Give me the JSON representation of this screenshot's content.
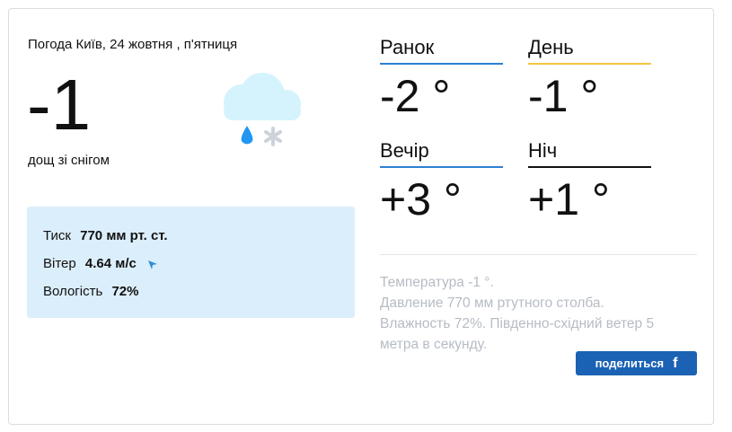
{
  "header": {
    "title": "Погода Київ, 24 жовтня , п'ятниця"
  },
  "current": {
    "temperature": "-1",
    "condition": "дощ зі снігом",
    "icon": "cloud-rain-snow-icon"
  },
  "details": [
    {
      "label": "Тиск",
      "value": "770 мм рт. ст."
    },
    {
      "label": "Вітер",
      "value": "4.64 м/с",
      "icon": "wind-direction-arrow-icon"
    },
    {
      "label": "Вологість",
      "value": "72%"
    }
  ],
  "periods": [
    {
      "label": "Ранок",
      "value": "-2 °",
      "color": "#2d7fd3"
    },
    {
      "label": "День",
      "value": "-1 °",
      "color": "#f5c542"
    },
    {
      "label": "Вечір",
      "value": "+3 °",
      "color": "#2d7fd3"
    },
    {
      "label": "Ніч",
      "value": "+1 °",
      "color": "#111111"
    }
  ],
  "description": [
    "Температура -1 °.",
    "Давление 770 мм ртутного столба.",
    "Влажность 72%. Південно-східний ветер 5 метра в секунду."
  ],
  "share": {
    "label": "поделиться",
    "icon": "facebook-icon"
  }
}
